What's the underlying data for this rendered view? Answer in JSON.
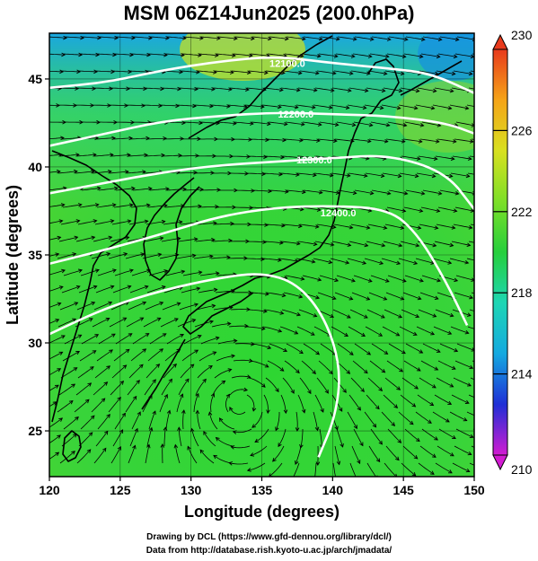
{
  "title": "MSM 06Z14Jun2025 (200.0hPa)",
  "x_axis_label": "Longitude (degrees)",
  "y_axis_label": "Latitude  (degrees)",
  "x_ticks": [
    "120",
    "125",
    "130",
    "135",
    "140",
    "145",
    "150"
  ],
  "y_ticks": [
    "25",
    "30",
    "35",
    "40",
    "45"
  ],
  "x_range": [
    120,
    150
  ],
  "y_range": [
    22.4,
    47.6
  ],
  "colorbar": {
    "ticks": [
      "230",
      "226",
      "222",
      "218",
      "214",
      "210"
    ],
    "range": [
      210,
      230
    ],
    "colors": [
      "#d21cd2",
      "#1f2fd6",
      "#14a9e0",
      "#1ed6b4",
      "#26cf3c",
      "#7ddf28",
      "#d8e020",
      "#f5a418",
      "#e83a1c"
    ]
  },
  "contours": [
    {
      "label": "12100.0",
      "points": [
        [
          120,
          44.5
        ],
        [
          124,
          44.8
        ],
        [
          128,
          45.5
        ],
        [
          132,
          46.0
        ],
        [
          136,
          46.3
        ],
        [
          140,
          45.9
        ],
        [
          144,
          45.6
        ],
        [
          147,
          45.3
        ],
        [
          150,
          44.2
        ]
      ],
      "label_at": [
        136.8,
        45.9
      ]
    },
    {
      "label": "12200.0",
      "points": [
        [
          120,
          41.2
        ],
        [
          124,
          41.9
        ],
        [
          128,
          42.6
        ],
        [
          132,
          42.9
        ],
        [
          136,
          43.1
        ],
        [
          140,
          43.0
        ],
        [
          144,
          42.9
        ],
        [
          148,
          42.5
        ],
        [
          150,
          41.9
        ]
      ],
      "label_at": [
        137.4,
        43.0
      ]
    },
    {
      "label": "12300.0",
      "points": [
        [
          120,
          38.5
        ],
        [
          124,
          39.1
        ],
        [
          128,
          39.7
        ],
        [
          132,
          40.1
        ],
        [
          136,
          40.3
        ],
        [
          140,
          40.5
        ],
        [
          144,
          40.7
        ],
        [
          148,
          39.7
        ],
        [
          150,
          37.6
        ]
      ],
      "label_at": [
        138.7,
        40.4
      ]
    },
    {
      "label": "12400.0",
      "points": [
        [
          120,
          34.5
        ],
        [
          124,
          35.3
        ],
        [
          128,
          36.2
        ],
        [
          132,
          37.2
        ],
        [
          136,
          37.7
        ],
        [
          140,
          37.8
        ],
        [
          144,
          37.6
        ],
        [
          146,
          36.2
        ],
        [
          148,
          33.5
        ],
        [
          149.5,
          31.0
        ]
      ],
      "label_at": [
        140.4,
        37.4
      ]
    },
    {
      "label": "",
      "points": [
        [
          120,
          30.5
        ],
        [
          124,
          32.0
        ],
        [
          128,
          33.0
        ],
        [
          132,
          33.7
        ],
        [
          135,
          34.0
        ],
        [
          137.5,
          33.4
        ],
        [
          139.5,
          31.4
        ],
        [
          140.6,
          28.5
        ],
        [
          140.2,
          25.8
        ],
        [
          139.0,
          23.5
        ]
      ],
      "label_at": null
    }
  ],
  "credits": [
    "Drawing by DCL (https://www.gfd-dennou.org/library/dcl/)",
    "Data from http://database.rish.kyoto-u.ac.jp/arch/jmadata/"
  ]
}
